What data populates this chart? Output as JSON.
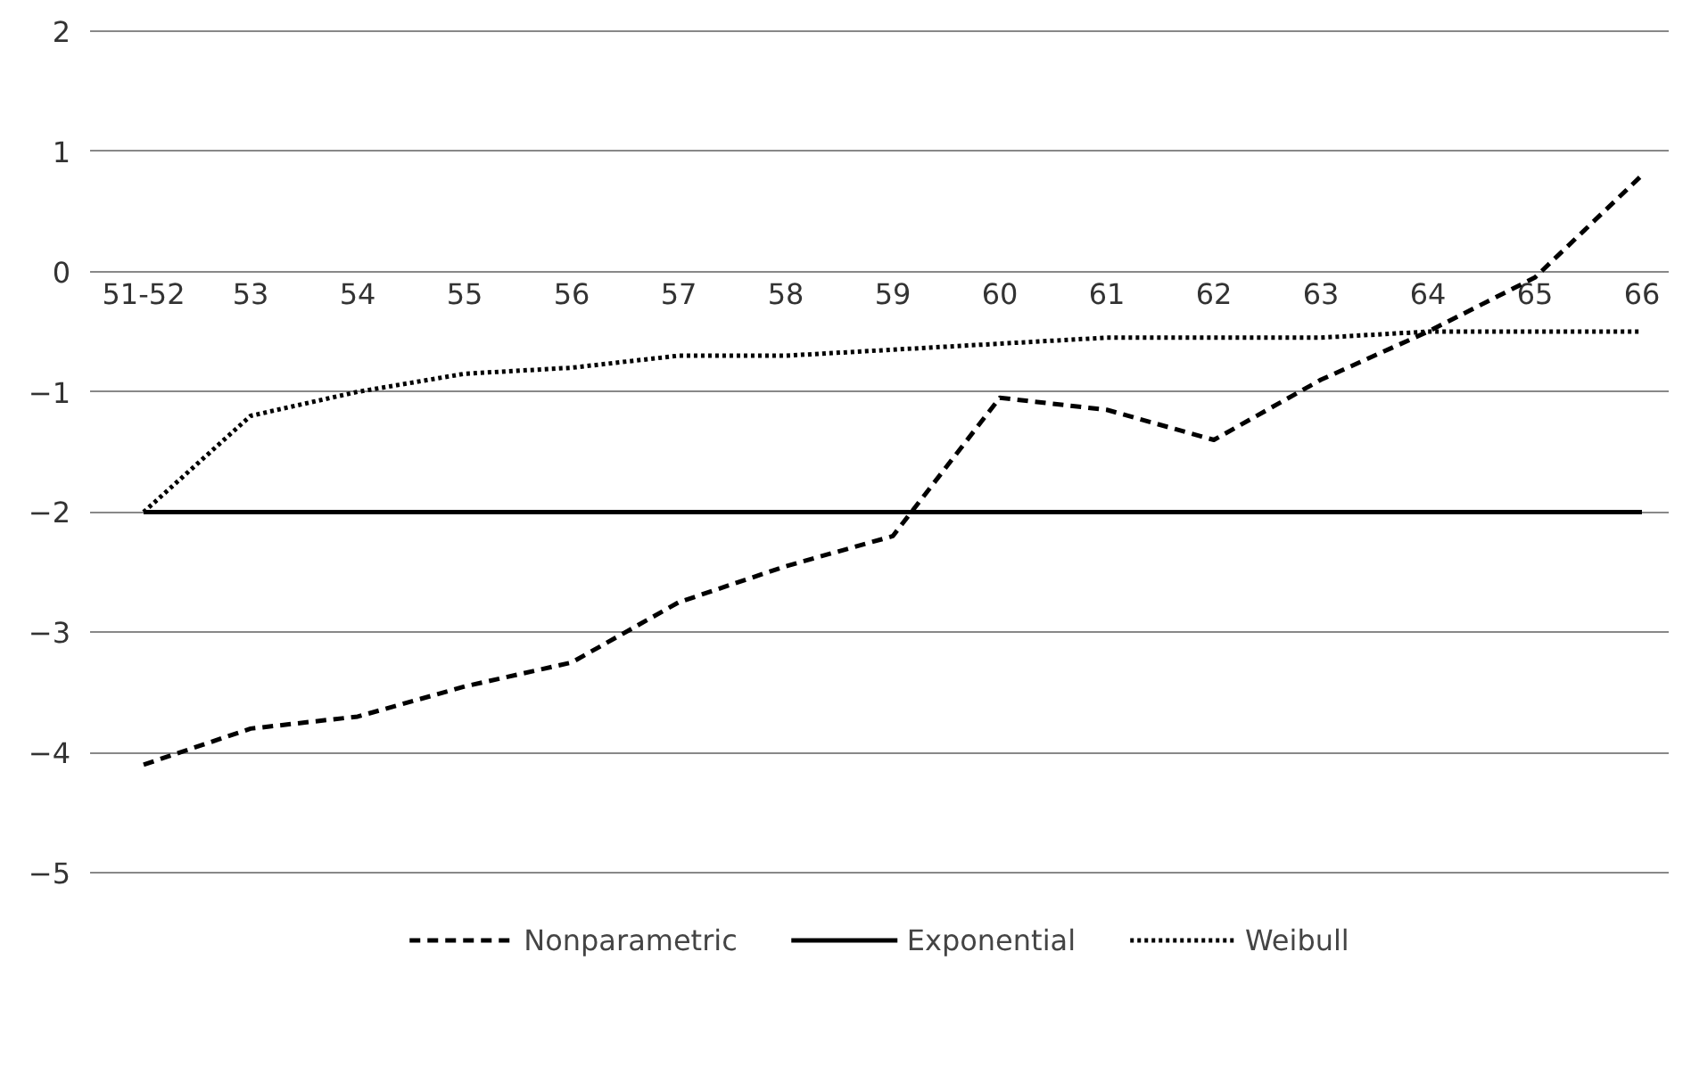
{
  "chart_data": {
    "type": "line",
    "categories": [
      "51-52",
      "53",
      "54",
      "55",
      "56",
      "57",
      "58",
      "59",
      "60",
      "61",
      "62",
      "63",
      "64",
      "65",
      "66"
    ],
    "series": [
      {
        "name": "Nonparametric",
        "color": "#000000",
        "line_style": "dashed",
        "values": [
          -4.1,
          -3.8,
          -3.7,
          -3.45,
          -3.25,
          -2.75,
          -2.45,
          -2.2,
          -1.05,
          -1.15,
          -1.4,
          -0.9,
          -0.5,
          -0.05,
          0.8
        ]
      },
      {
        "name": "Exponential",
        "color": "#000000",
        "line_style": "solid",
        "values": [
          -2,
          -2,
          -2,
          -2,
          -2,
          -2,
          -2,
          -2,
          -2,
          -2,
          -2,
          -2,
          -2,
          -2,
          -2
        ]
      },
      {
        "name": "Weibull",
        "color": "#000000",
        "line_style": "dotted",
        "values": [
          -2.0,
          -1.2,
          -1.0,
          -0.85,
          -0.8,
          -0.7,
          -0.7,
          -0.65,
          -0.6,
          -0.55,
          -0.55,
          -0.55,
          -0.5,
          -0.5,
          -0.5
        ]
      }
    ],
    "ylim": [
      -5,
      2
    ],
    "yticks": [
      -5,
      -4,
      -3,
      -2,
      -1,
      0,
      1,
      2
    ],
    "grid": "y",
    "legend": "bottom",
    "marker": "none"
  }
}
